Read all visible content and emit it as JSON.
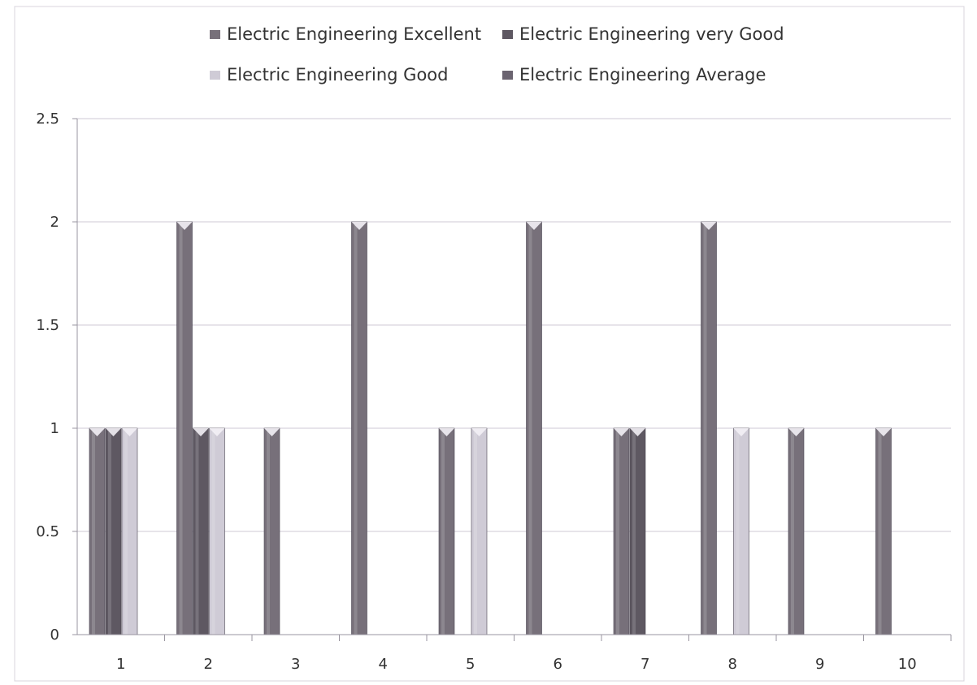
{
  "chart_data": {
    "type": "bar",
    "title": "",
    "xlabel": "",
    "ylabel": "",
    "categories": [
      "1",
      "2",
      "3",
      "4",
      "5",
      "6",
      "7",
      "8",
      "9",
      "10"
    ],
    "series": [
      {
        "name": "Electric Engineering Excellent",
        "color": "#77707a",
        "values": [
          1,
          2,
          1,
          2,
          1,
          2,
          1,
          2,
          1,
          1
        ]
      },
      {
        "name": "Electric Engineering very Good",
        "color": "#5e5862",
        "values": [
          1,
          1,
          0,
          0,
          0,
          0,
          1,
          0,
          0,
          0
        ]
      },
      {
        "name": "Electric Engineering Good",
        "color": "#cfcbd6",
        "values": [
          1,
          1,
          0,
          0,
          1,
          0,
          0,
          1,
          0,
          0
        ]
      },
      {
        "name": "Electric Engineering Average",
        "color": "#6b6470",
        "values": [
          0,
          0,
          0,
          0,
          0,
          0,
          0,
          0,
          0,
          0
        ]
      }
    ],
    "ylim": [
      0,
      2.5
    ],
    "yticks": [
      "0",
      "0.5",
      "1",
      "1.5",
      "2",
      "2.5"
    ],
    "grid": true,
    "legend_position": "top"
  }
}
